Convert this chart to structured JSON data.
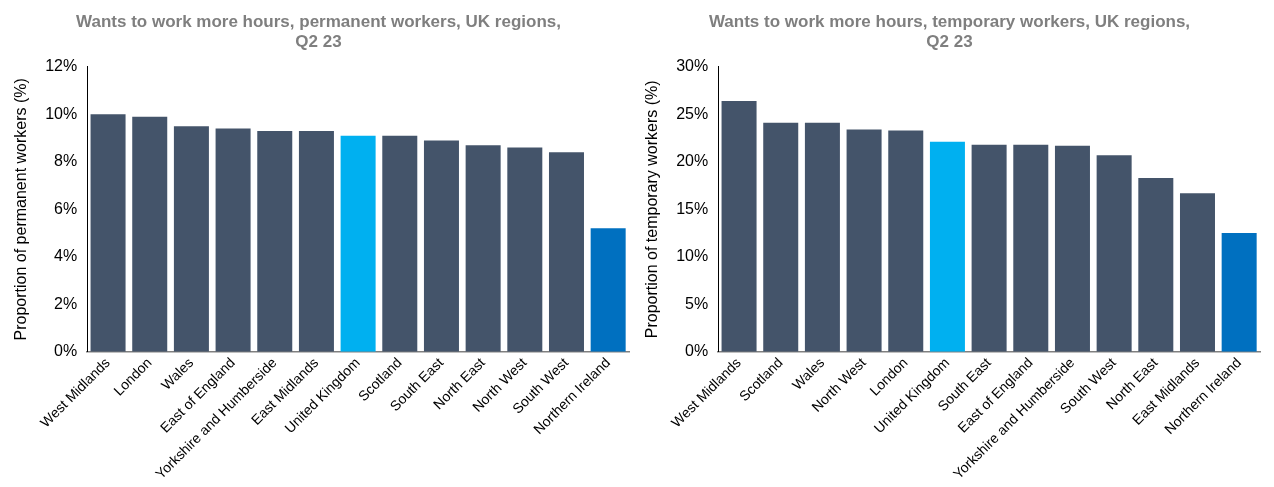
{
  "chart_data": [
    {
      "type": "bar",
      "title": "Wants to work more hours, permanent workers, UK regions, Q2 23",
      "ylabel": "Proportion of permanent workers (%)",
      "categories": [
        "West Midlands",
        "London",
        "Wales",
        "East of England",
        "Yorkshire and Humberside",
        "East Midlands",
        "United Kingdom",
        "Scotland",
        "South East",
        "North East",
        "North West",
        "South West",
        "Northern Ireland"
      ],
      "values": [
        10.0,
        9.9,
        9.5,
        9.4,
        9.3,
        9.3,
        9.1,
        9.1,
        8.9,
        8.7,
        8.6,
        8.4,
        5.2
      ],
      "colors": [
        "#44546a",
        "#44546a",
        "#44546a",
        "#44546a",
        "#44546a",
        "#44546a",
        "#00b0f0",
        "#44546a",
        "#44546a",
        "#44546a",
        "#44546a",
        "#44546a",
        "#0070c0"
      ],
      "ylim": [
        0,
        12
      ],
      "yticks": [
        {
          "value": 0,
          "label": "0%"
        },
        {
          "value": 2,
          "label": "2%"
        },
        {
          "value": 4,
          "label": "4%"
        },
        {
          "value": 6,
          "label": "6%"
        },
        {
          "value": 8,
          "label": "8%"
        },
        {
          "value": 10,
          "label": "10%"
        },
        {
          "value": 12,
          "label": "12%"
        }
      ],
      "grid": false,
      "legend": false
    },
    {
      "type": "bar",
      "title": "Wants to work more hours, temporary workers, UK regions, Q2 23",
      "ylabel": "Proportion of temporary workers (%)",
      "categories": [
        "West Midlands",
        "Scotland",
        "Wales",
        "North West",
        "London",
        "United Kingdom",
        "South East",
        "East of England",
        "Yorkshire and Humberside",
        "South West",
        "North East",
        "East Midlands",
        "Northern Ireland"
      ],
      "values": [
        26.4,
        24.1,
        24.1,
        23.4,
        23.3,
        22.1,
        21.8,
        21.8,
        21.7,
        20.7,
        18.3,
        16.7,
        12.5
      ],
      "colors": [
        "#44546a",
        "#44546a",
        "#44546a",
        "#44546a",
        "#44546a",
        "#00b0f0",
        "#44546a",
        "#44546a",
        "#44546a",
        "#44546a",
        "#44546a",
        "#44546a",
        "#0070c0"
      ],
      "ylim": [
        0,
        30
      ],
      "yticks": [
        {
          "value": 0,
          "label": "0%"
        },
        {
          "value": 5,
          "label": "5%"
        },
        {
          "value": 10,
          "label": "10%"
        },
        {
          "value": 15,
          "label": "15%"
        },
        {
          "value": 20,
          "label": "20%"
        },
        {
          "value": 25,
          "label": "25%"
        },
        {
          "value": 30,
          "label": "30%"
        }
      ],
      "grid": false,
      "legend": false
    }
  ]
}
